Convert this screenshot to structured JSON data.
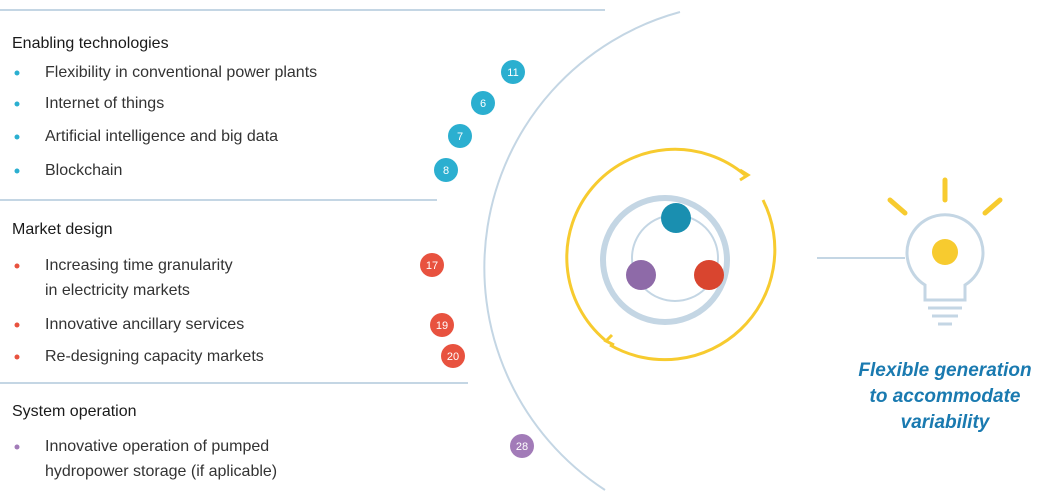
{
  "sections": [
    {
      "title": "Enabling technologies",
      "color": "#2bafd0",
      "items": [
        {
          "lines": [
            "Flexibility in conventional power plants"
          ],
          "number": 11
        },
        {
          "lines": [
            "Internet of things"
          ],
          "number": 6
        },
        {
          "lines": [
            "Artificial intelligence and big data"
          ],
          "number": 7
        },
        {
          "lines": [
            "Blockchain"
          ],
          "number": 8
        }
      ]
    },
    {
      "title": "Market design",
      "color": "#e8523f",
      "items": [
        {
          "lines": [
            "Increasing time granularity",
            "in electricity markets"
          ],
          "number": 17
        },
        {
          "lines": [
            "Innovative ancillary services"
          ],
          "number": 19
        },
        {
          "lines": [
            "Re-designing capacity markets"
          ],
          "number": 20
        }
      ]
    },
    {
      "title": "System operation",
      "color": "#a27bb8",
      "items": [
        {
          "lines": [
            "Innovative operation of pumped",
            "hydropower storage (if aplicable)"
          ],
          "number": 28
        }
      ]
    }
  ],
  "caption": [
    "Flexible generation",
    "to accommodate",
    "variability"
  ]
}
